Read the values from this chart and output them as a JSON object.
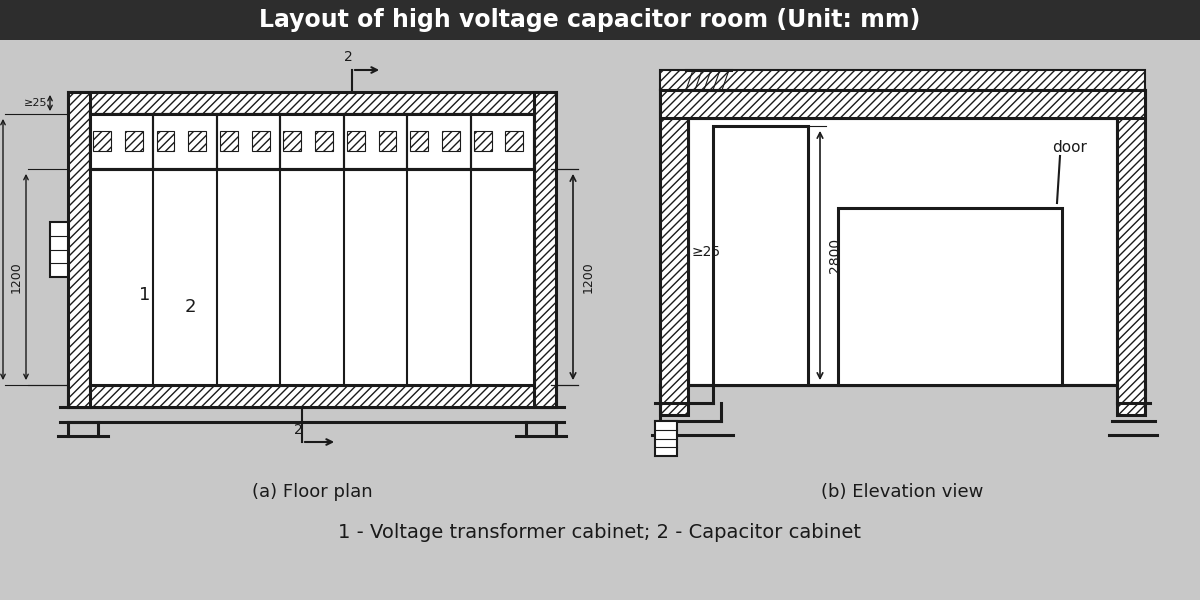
{
  "title": "Layout of high voltage capacitor room (Unit: mm)",
  "title_bg": "#2d2d2d",
  "title_color": "#ffffff",
  "bg_color": "#c8c8c8",
  "caption_a": "(a) Floor plan",
  "caption_b": "(b) Elevation view",
  "caption_bottom": "1 - Voltage transformer cabinet; 2 - Capacitor cabinet",
  "line_color": "#1a1a1a"
}
